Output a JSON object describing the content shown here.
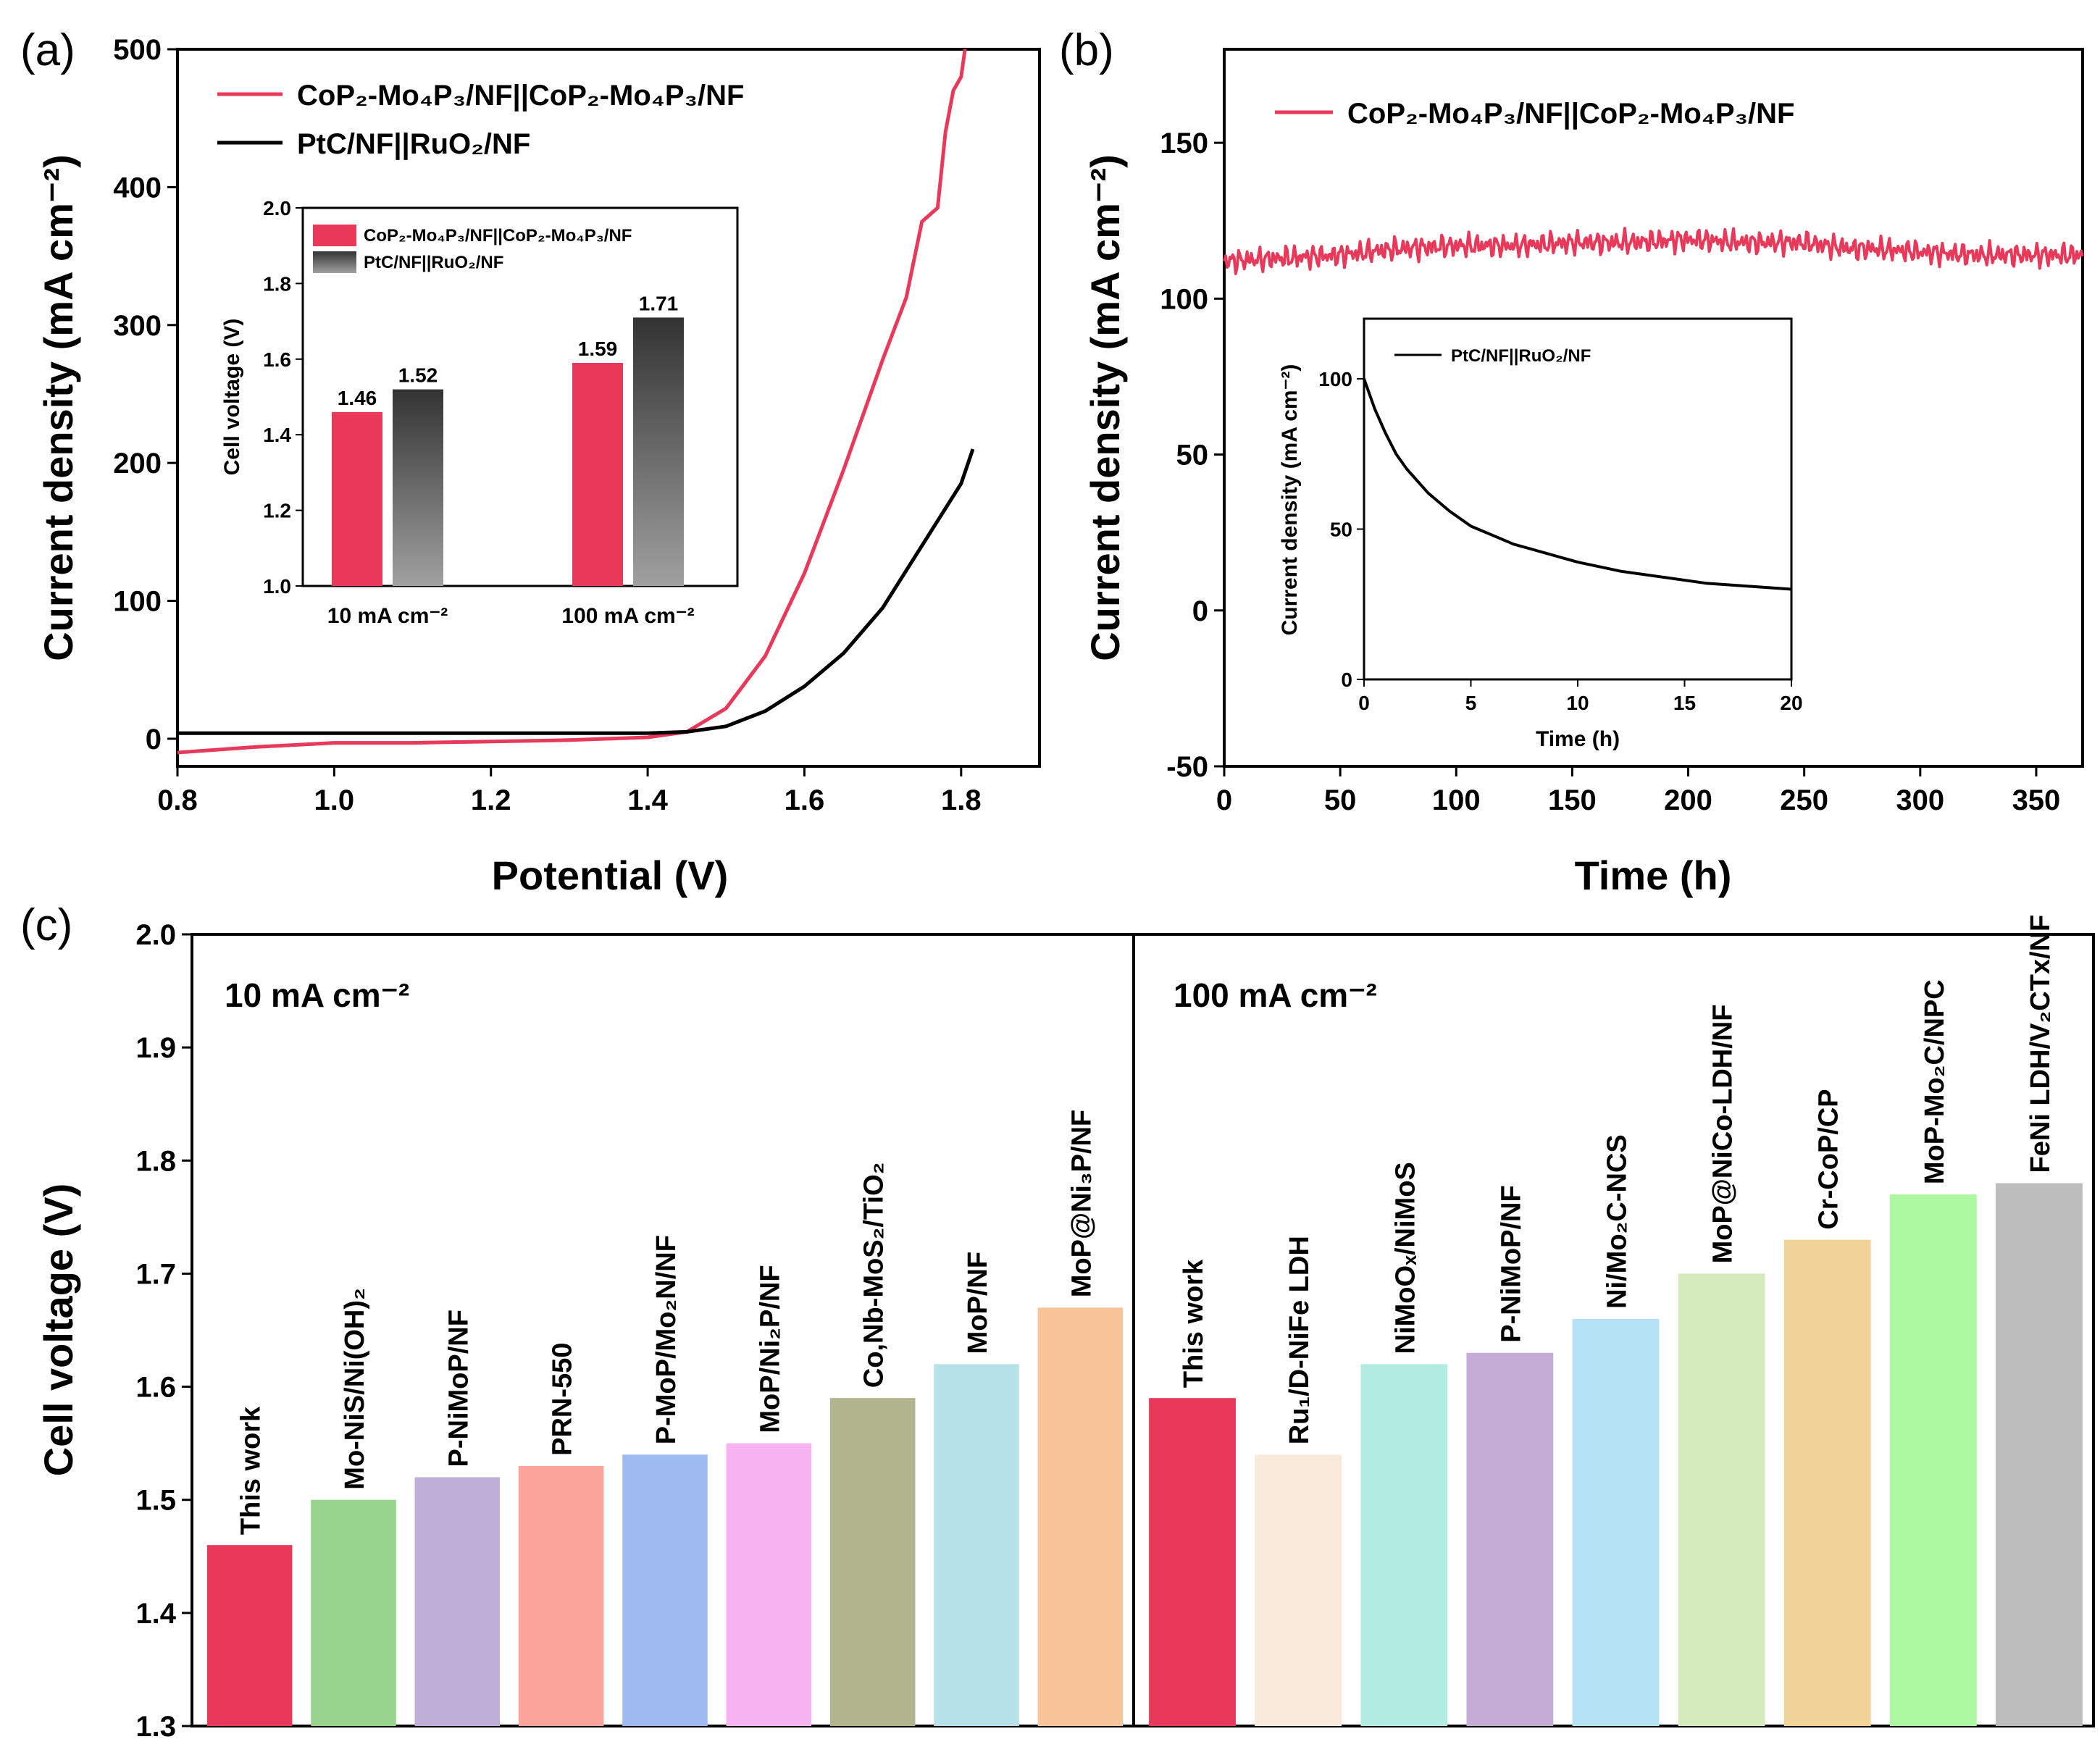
{
  "chart_data": [
    {
      "id": "a",
      "panel_label": "(a)",
      "type": "line",
      "xlabel": "Potential (V)",
      "ylabel": "Current density (mA cm⁻²)",
      "xlim": [
        0.8,
        1.9
      ],
      "ylim": [
        -20,
        500
      ],
      "xticks": [
        "0.8",
        "1.0",
        "1.2",
        "1.4",
        "1.6",
        "1.8"
      ],
      "yticks": [
        "0",
        "100",
        "200",
        "300",
        "400",
        "500"
      ],
      "legend_position": "top-left",
      "series": [
        {
          "name": "CoP₂-Mo₄P₃/NF||CoP₂-Mo₄P₃/NF",
          "color": "#e8395a",
          "x": [
            0.8,
            0.9,
            1.0,
            1.1,
            1.2,
            1.3,
            1.4,
            1.45,
            1.5,
            1.55,
            1.6,
            1.65,
            1.7,
            1.73,
            1.75,
            1.77,
            1.78,
            1.79,
            1.8,
            1.805
          ],
          "y": [
            -10,
            -6,
            -3,
            -3,
            -2,
            -1,
            1,
            5,
            22,
            60,
            120,
            195,
            275,
            320,
            375,
            385,
            440,
            470,
            480,
            500
          ]
        },
        {
          "name": "PtC/NF||RuO₂/NF",
          "color": "#000000",
          "x": [
            0.8,
            1.0,
            1.2,
            1.4,
            1.45,
            1.5,
            1.55,
            1.6,
            1.65,
            1.7,
            1.75,
            1.8,
            1.815
          ],
          "y": [
            4,
            4,
            4,
            4,
            5,
            9,
            20,
            38,
            62,
            95,
            140,
            185,
            210
          ]
        }
      ],
      "inset": {
        "type": "bar",
        "ylabel": "Cell voltage (V)",
        "ylim": [
          1.0,
          2.0
        ],
        "yticks": [
          "1.0",
          "1.2",
          "1.4",
          "1.6",
          "1.8",
          "2.0"
        ],
        "categories": [
          "10 mA cm⁻²",
          "100 mA cm⁻²"
        ],
        "series": [
          {
            "name": "CoP₂-Mo₄P₃/NF||CoP₂-Mo₄P₃/NF",
            "values": [
              1.46,
              1.59
            ],
            "labels": [
              "1.46",
              "1.59"
            ],
            "color": "#e8395a"
          },
          {
            "name": "PtC/NF||RuO₂/NF",
            "values": [
              1.52,
              1.71
            ],
            "labels": [
              "1.52",
              "1.71"
            ],
            "color": "#555555"
          }
        ]
      }
    },
    {
      "id": "b",
      "panel_label": "(b)",
      "type": "line",
      "xlabel": "Time (h)",
      "ylabel": "Current density (mA cm⁻²)",
      "xlim": [
        0,
        370
      ],
      "ylim": [
        -50,
        180
      ],
      "xticks": [
        "0",
        "50",
        "100",
        "150",
        "200",
        "250",
        "300",
        "350"
      ],
      "yticks": [
        "-50",
        "0",
        "50",
        "100",
        "150"
      ],
      "legend_position": "top",
      "series": [
        {
          "name": "CoP₂-Mo₄P₃/NF||CoP₂-Mo₄P₃/NF",
          "color": "#e8395a",
          "x": [
            0,
            25,
            50,
            75,
            100,
            125,
            150,
            175,
            200,
            225,
            250,
            270,
            280,
            300,
            325,
            350,
            370
          ],
          "y": [
            112,
            113,
            114,
            116,
            117,
            117,
            118,
            118,
            119,
            118,
            118,
            116,
            116,
            115,
            114,
            114,
            114
          ]
        }
      ],
      "inset": {
        "type": "line",
        "xlabel": "Time (h)",
        "ylabel": "Current density (mA cm⁻²)",
        "xlim": [
          0,
          20
        ],
        "ylim": [
          0,
          120
        ],
        "xticks": [
          "0",
          "5",
          "10",
          "15",
          "20"
        ],
        "yticks": [
          "0",
          "50",
          "100"
        ],
        "series": [
          {
            "name": "PtC/NF||RuO₂/NF",
            "color": "#000000",
            "x": [
              0,
              0.5,
              1,
              1.5,
              2,
              3,
              4,
              5,
              6,
              7,
              8,
              10,
              12,
              14,
              16,
              18,
              20
            ],
            "y": [
              100,
              90,
              82,
              75,
              70,
              62,
              56,
              51,
              48,
              45,
              43,
              39,
              36,
              34,
              32,
              31,
              30
            ]
          }
        ]
      }
    },
    {
      "id": "c",
      "panel_label": "(c)",
      "type": "bar",
      "ylabel": "Cell voltage (V)",
      "ylim": [
        1.3,
        2.0
      ],
      "yticks": [
        "1.3",
        "1.4",
        "1.5",
        "1.6",
        "1.7",
        "1.8",
        "1.9",
        "2.0"
      ],
      "groups": [
        {
          "label": "10 mA cm⁻²",
          "categories": [
            "This work",
            "Mo-NiS/Ni(OH)₂",
            "P-NiMoP/NF",
            "PRN-550",
            "P-MoP/Mo₂N/NF",
            "MoP/Ni₂P/NF",
            "Co,Nb-MoS₂/TiO₂",
            "MoP/NF",
            "MoP@Ni₃P/NF"
          ],
          "values": [
            1.46,
            1.5,
            1.52,
            1.53,
            1.54,
            1.55,
            1.59,
            1.62,
            1.67
          ],
          "colors": [
            "#e8395a",
            "#99d48e",
            "#bfaed7",
            "#fba59a",
            "#9ebaf0",
            "#f8b4f2",
            "#b0b58e",
            "#b6e1e8",
            "#f9c49a"
          ]
        },
        {
          "label": "100 mA cm⁻²",
          "categories": [
            "This work",
            "Ru₁/D-NiFe LDH",
            "NiMoOₓ/NiMoS",
            "P-NiMoP/NF",
            "Ni/Mo₂C-NCS",
            "MoP@NiCo-LDH/NF",
            "Cr-CoP/CP",
            "MoP-Mo₂C/NPC",
            "FeNi LDH/V₂CTx/NF"
          ],
          "values": [
            1.59,
            1.54,
            1.62,
            1.63,
            1.66,
            1.7,
            1.73,
            1.77,
            1.78
          ],
          "colors": [
            "#e8395a",
            "#f9eadc",
            "#b3ece2",
            "#c4acd6",
            "#b6e2f6",
            "#d5eabd",
            "#f2d49a",
            "#adf9a2",
            "#bdbdbd"
          ]
        }
      ]
    }
  ]
}
